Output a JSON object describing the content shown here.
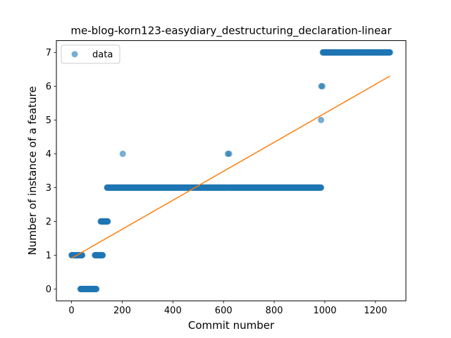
{
  "chart_data": {
    "type": "scatter",
    "title": "me-blog-korn123-easydiary_destructuring_declaration-linear",
    "xlabel": "Commit number",
    "ylabel": "Number of instance of a feature",
    "xlim": [
      -60,
      1320
    ],
    "ylim": [
      -0.35,
      7.35
    ],
    "xticks": [
      0,
      200,
      400,
      600,
      800,
      1000,
      1200
    ],
    "yticks": [
      0,
      1,
      2,
      3,
      4,
      5,
      6,
      7
    ],
    "grid": false,
    "legend": {
      "position": "top-left",
      "entries": [
        "data"
      ]
    },
    "colors": {
      "data": "#1f77b4",
      "fit": "#ff7f0e"
    },
    "series": [
      {
        "name": "data",
        "kind": "scatter",
        "segments": [
          {
            "x_start": 0,
            "x_end": 42,
            "y": 1
          },
          {
            "x_start": 35,
            "x_end": 98,
            "y": 0
          },
          {
            "x_start": 92,
            "x_end": 123,
            "y": 1
          },
          {
            "x_start": 115,
            "x_end": 143,
            "y": 2
          },
          {
            "x_start": 140,
            "x_end": 617,
            "y": 3
          },
          {
            "x_start": 622,
            "x_end": 985,
            "y": 3
          }
        ],
        "points": [
          {
            "x": 202,
            "y": 4
          },
          {
            "x": 617,
            "y": 4
          },
          {
            "x": 622,
            "y": 4
          },
          {
            "x": 985,
            "y": 5
          },
          {
            "x": 986,
            "y": 6
          },
          {
            "x": 990,
            "y": 6
          }
        ],
        "tail": {
          "x_start": 992,
          "x_end": 1257,
          "y": 7
        }
      },
      {
        "name": "",
        "kind": "line",
        "x": [
          0,
          1257
        ],
        "y": [
          0.91,
          6.3
        ]
      }
    ]
  }
}
